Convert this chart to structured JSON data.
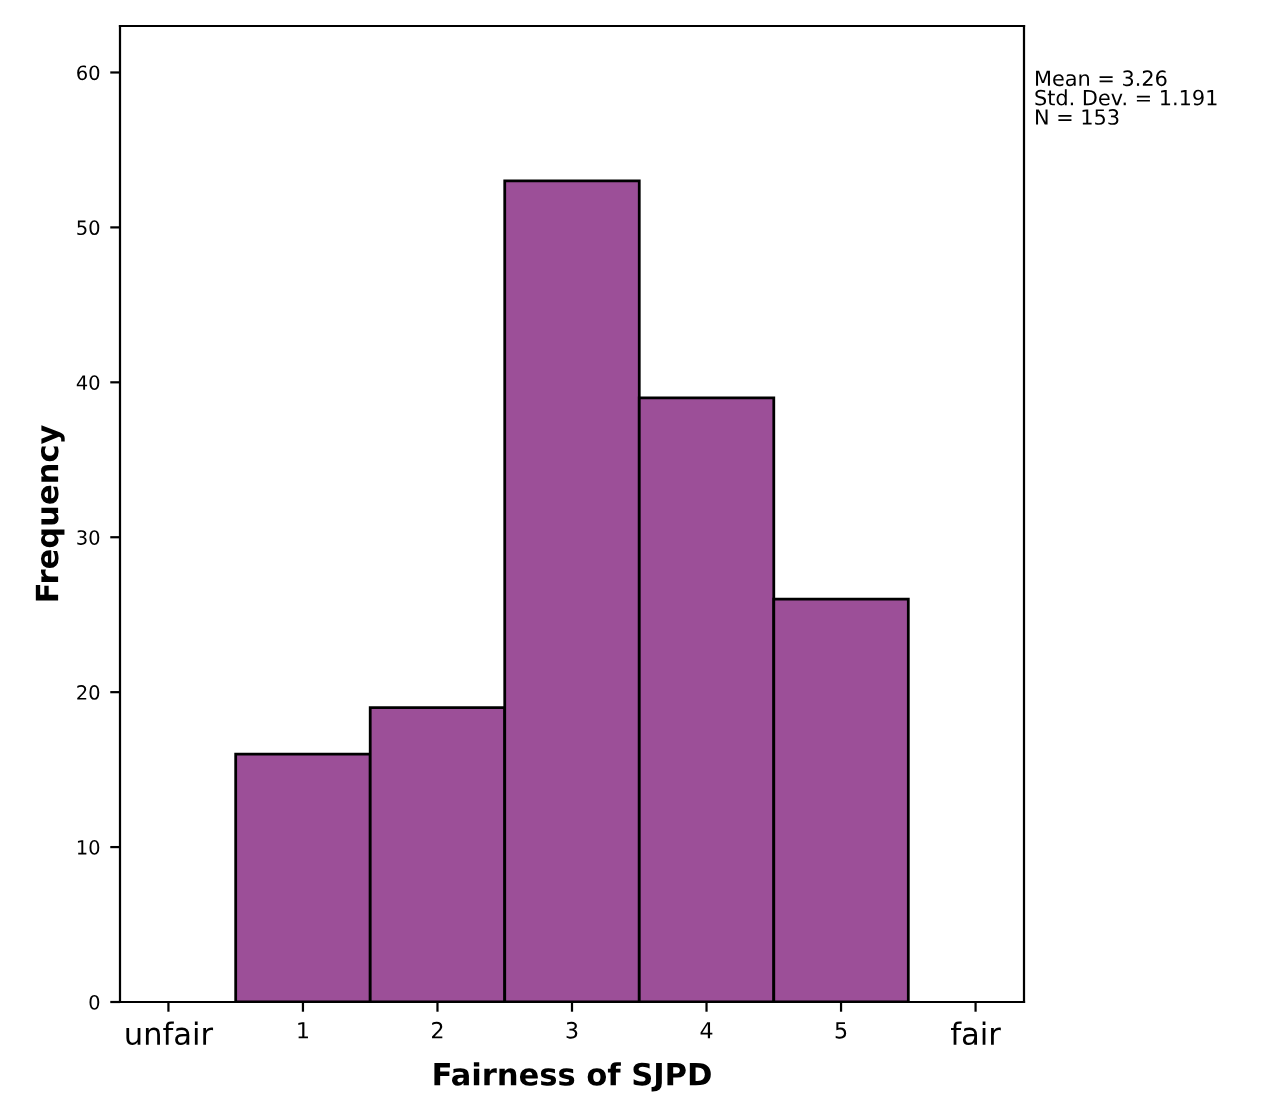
{
  "chart_data": {
    "type": "histogram",
    "xlabel": "Fairness of SJPD",
    "ylabel": "Frequency",
    "bins": [
      0.5,
      1.5,
      2.5,
      3.5,
      4.5,
      5.5
    ],
    "values": [
      16,
      19,
      53,
      39,
      26
    ],
    "color": "#9c4f98",
    "xlim": [
      -0.36,
      6.36
    ],
    "xticks": [
      {
        "value": 0,
        "label": "unfair"
      },
      1,
      2,
      3,
      4,
      5,
      {
        "value": 6,
        "label": "fair"
      }
    ],
    "ylim": [
      0,
      63
    ],
    "yticks": [
      0,
      10,
      20,
      30,
      40,
      50,
      60
    ],
    "grid": false,
    "annotations": [
      "Mean = 3.26\nStd. Dev. = 1.191\nN = 153"
    ]
  }
}
